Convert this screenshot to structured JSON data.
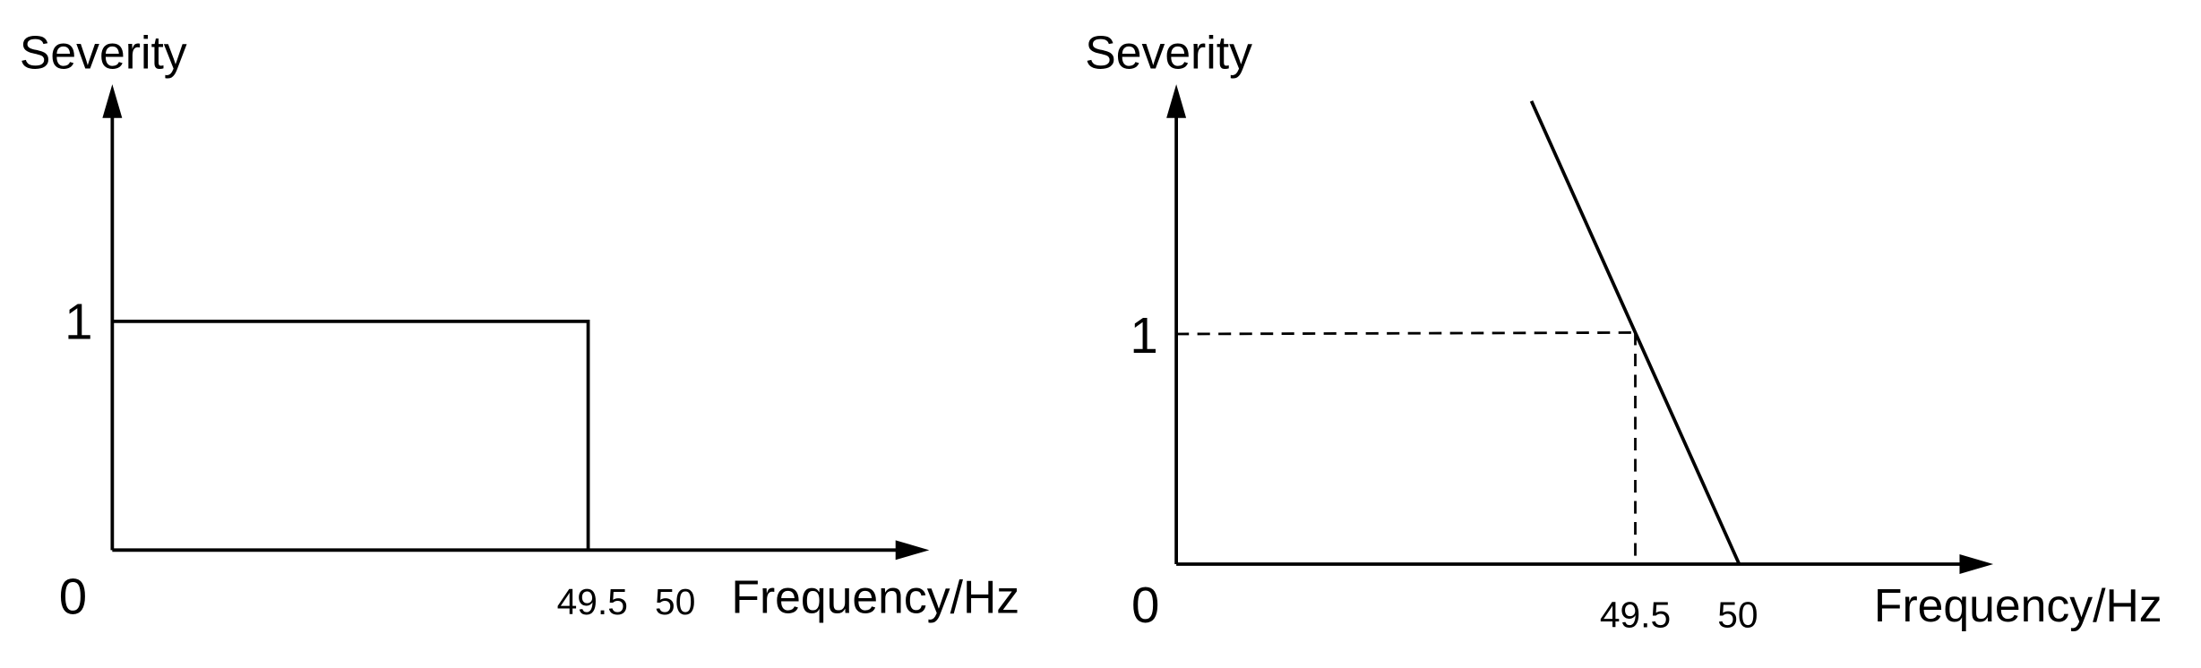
{
  "panels": [
    {
      "y_label": "Severity",
      "y_tick": "1",
      "origin": "0",
      "x_ticks": [
        "49.5",
        "50"
      ],
      "x_label": "Frequency/Hz"
    },
    {
      "y_label": "Severity",
      "y_tick": "1",
      "origin": "0",
      "x_ticks": [
        "49.5",
        "50"
      ],
      "x_label": "Frequency/Hz"
    }
  ]
}
